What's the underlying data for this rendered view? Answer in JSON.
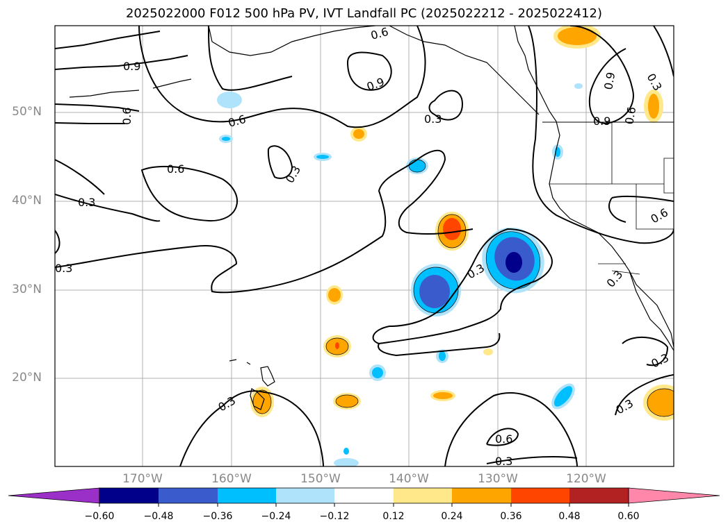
{
  "title": "2025022000 F012 500 hPa PV, IVT Landfall PC (2025022212 - 2025022412)",
  "lat_labels": [
    "50°N",
    "40°N",
    "30°N",
    "20°N"
  ],
  "lon_labels": [
    "170°W",
    "160°W",
    "150°W",
    "140°W",
    "130°W",
    "120°W"
  ],
  "contour_labels": [
    "0.9",
    "0.6",
    "0.3"
  ],
  "colorbar": {
    "ticks": [
      "−0.60",
      "−0.48",
      "−0.36",
      "−0.24",
      "−0.12",
      "0.12",
      "0.24",
      "0.36",
      "0.48",
      "0.60"
    ],
    "under_color": "#9b30c9",
    "colors": [
      "#00008b",
      "#3a5bcc",
      "#00bfff",
      "#aee3fb",
      "#ffffff",
      "#ffe88a",
      "#ffa500",
      "#ff4500",
      "#b22222"
    ],
    "over_color": "#ff88aa",
    "extend": "both"
  },
  "map": {
    "region": "North Pacific / US West Coast",
    "gridlines": true,
    "fill_colors": {
      "dark_blue": "#00008b",
      "mid_blue": "#3a5bcc",
      "cyan": "#00bfff",
      "light_blue": "#aee3fb",
      "light_yellow": "#ffe88a",
      "orange": "#ffa500",
      "red_orange": "#ff4500"
    }
  }
}
